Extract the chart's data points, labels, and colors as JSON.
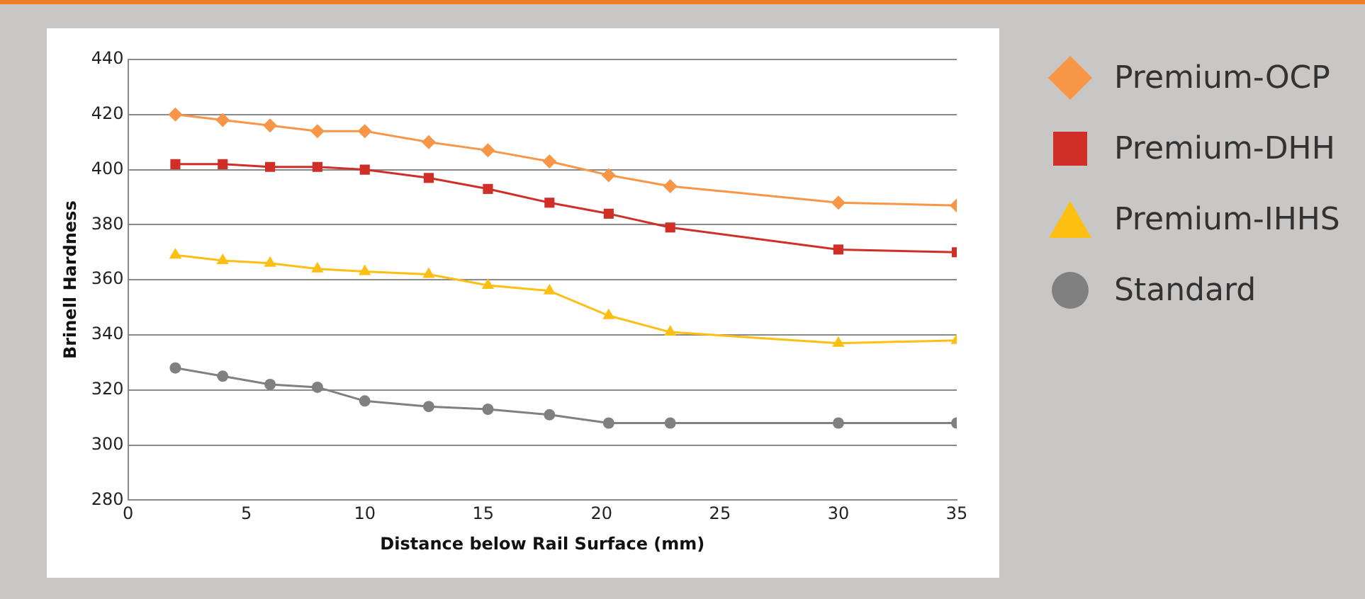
{
  "chart_data": {
    "type": "line",
    "xlabel": "Distance below Rail Surface (mm)",
    "ylabel": "Brinell Hardness",
    "x": [
      2,
      4,
      6,
      8,
      10,
      12.7,
      15.2,
      17.8,
      20.3,
      22.9,
      30,
      35
    ],
    "series": [
      {
        "name": "Premium-OCP",
        "color": "#f79646",
        "marker": "diamond",
        "values": [
          420,
          418,
          416,
          414,
          414,
          410,
          407,
          403,
          398,
          394,
          388,
          387
        ]
      },
      {
        "name": "Premium-DHH",
        "color": "#d02f27",
        "marker": "square",
        "values": [
          402,
          402,
          401,
          401,
          400,
          397,
          393,
          388,
          384,
          379,
          371,
          370
        ]
      },
      {
        "name": "Premium-IHHS",
        "color": "#fdbf12",
        "marker": "triangle",
        "values": [
          369,
          367,
          366,
          364,
          363,
          362,
          358,
          356,
          347,
          341,
          337,
          338
        ]
      },
      {
        "name": "Standard",
        "color": "#808080",
        "marker": "circle",
        "values": [
          328,
          325,
          322,
          321,
          316,
          314,
          313,
          311,
          308,
          308,
          308,
          308
        ]
      }
    ],
    "xlim": [
      0,
      35
    ],
    "xticks": [
      0,
      5,
      10,
      15,
      20,
      25,
      30,
      35
    ],
    "ylim": [
      280,
      440
    ],
    "yticks": [
      280,
      300,
      320,
      340,
      360,
      380,
      400,
      420,
      440
    ],
    "grid": "y",
    "legend": "right"
  }
}
